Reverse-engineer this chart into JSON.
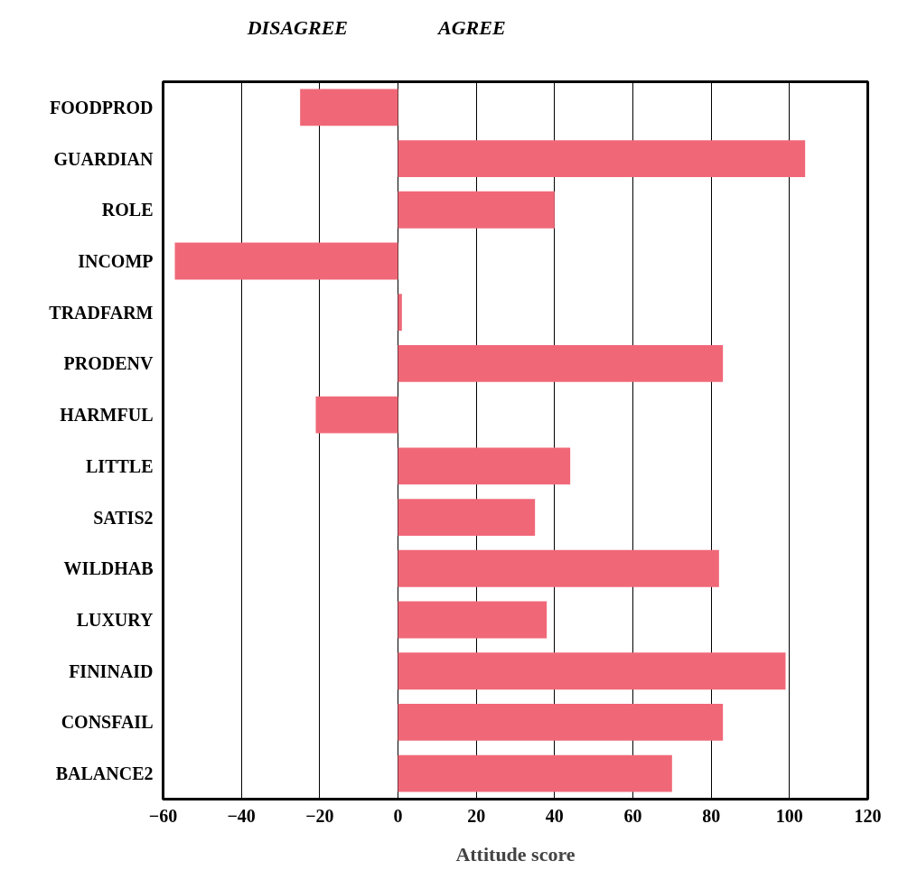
{
  "chart_data": {
    "type": "bar",
    "orientation": "horizontal",
    "xlabel": "Attitude score",
    "annotations": [
      "DISAGREE",
      "AGREE"
    ],
    "categories": [
      "FOODPROD",
      "GUARDIAN",
      "ROLE",
      "INCOMP",
      "TRADFARM",
      "PRODENV",
      "HARMFUL",
      "LITTLE",
      "SATIS2",
      "WILDHAB",
      "LUXURY",
      "FININAID",
      "CONSFAIL",
      "BALANCE2"
    ],
    "values": [
      -25,
      104,
      40,
      -57,
      1,
      83,
      -21,
      44,
      35,
      82,
      38,
      99,
      83,
      70
    ],
    "color": "#f06878",
    "xlim": [
      -60,
      120
    ],
    "xticks": [
      -60,
      -40,
      -20,
      0,
      20,
      40,
      60,
      80,
      100,
      120
    ],
    "grid": "x"
  }
}
